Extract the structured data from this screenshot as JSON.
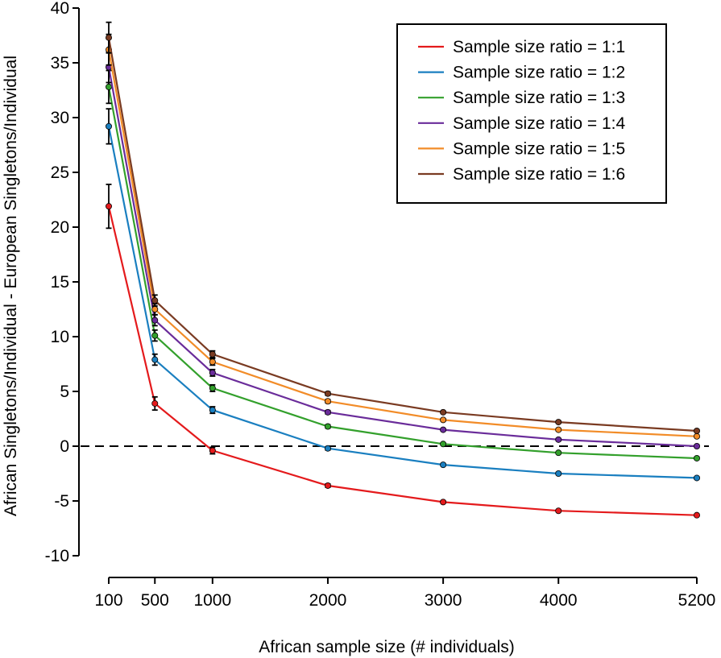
{
  "chart_data": {
    "type": "line",
    "title": "",
    "xlabel": "African sample size (# individuals)",
    "ylabel": "African Singletons/Individual - European Singletons/Individual",
    "x": [
      100,
      500,
      1000,
      2000,
      3000,
      4000,
      5200
    ],
    "x_tick_labels": [
      "100",
      "500",
      "1000",
      "2000",
      "3000",
      "4000",
      "5200"
    ],
    "ylim": [
      -10,
      40
    ],
    "y_ticks": [
      -10,
      -5,
      0,
      5,
      10,
      15,
      20,
      25,
      30,
      35,
      40
    ],
    "y_tick_labels": [
      "-10",
      "-5",
      "0",
      "5",
      "10",
      "15",
      "20",
      "25",
      "30",
      "35",
      "40"
    ],
    "reference_line": 0,
    "legend_position": "top-right",
    "series": [
      {
        "name": "Sample size ratio = 1:1",
        "color": "#e41a1c",
        "values": [
          21.9,
          3.9,
          -0.4,
          -3.6,
          -5.1,
          -5.9,
          -6.3
        ],
        "errors": [
          2.0,
          0.6,
          0.3,
          0.15,
          0.1,
          0.1,
          0.1
        ]
      },
      {
        "name": "Sample size ratio = 1:2",
        "color": "#1a7fc0",
        "values": [
          29.2,
          7.9,
          3.3,
          -0.2,
          -1.7,
          -2.5,
          -2.9
        ],
        "errors": [
          1.6,
          0.5,
          0.3,
          0.15,
          0.1,
          0.1,
          0.1
        ]
      },
      {
        "name": "Sample size ratio = 1:3",
        "color": "#33a02c",
        "values": [
          32.8,
          10.1,
          5.3,
          1.8,
          0.2,
          -0.6,
          -1.1
        ],
        "errors": [
          1.5,
          0.5,
          0.3,
          0.15,
          0.1,
          0.1,
          0.1
        ]
      },
      {
        "name": "Sample size ratio = 1:4",
        "color": "#6a2c9a",
        "values": [
          34.6,
          11.5,
          6.7,
          3.1,
          1.5,
          0.6,
          0.0
        ],
        "errors": [
          1.4,
          0.5,
          0.3,
          0.15,
          0.1,
          0.1,
          0.1
        ]
      },
      {
        "name": "Sample size ratio = 1:5",
        "color": "#f28c28",
        "values": [
          36.2,
          12.5,
          7.7,
          4.1,
          2.4,
          1.5,
          0.9
        ],
        "errors": [
          1.4,
          0.5,
          0.3,
          0.15,
          0.1,
          0.1,
          0.1
        ]
      },
      {
        "name": "Sample size ratio = 1:6",
        "color": "#7a3b22",
        "values": [
          37.3,
          13.3,
          8.4,
          4.8,
          3.1,
          2.2,
          1.4
        ],
        "errors": [
          1.4,
          0.5,
          0.3,
          0.15,
          0.1,
          0.1,
          0.1
        ]
      }
    ]
  }
}
